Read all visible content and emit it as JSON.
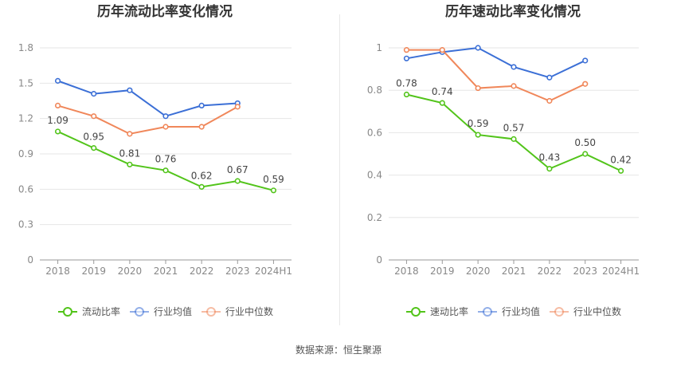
{
  "source": "数据来源：恒生聚源",
  "colors": {
    "main": "#52c41a",
    "avg": "#3b6fd6",
    "median": "#f0875a"
  },
  "chart_data": [
    {
      "type": "line",
      "title": "历年流动比率变化情况",
      "categories": [
        "2018",
        "2019",
        "2020",
        "2021",
        "2022",
        "2023",
        "2024H1"
      ],
      "ylim": [
        0,
        1.8
      ],
      "yticks": [
        "0",
        "0.3",
        "0.6",
        "0.9",
        "1.2",
        "1.5",
        "1.8"
      ],
      "grid": true,
      "legend_position": "bottom",
      "series": [
        {
          "name": "流动比率",
          "values": [
            1.09,
            0.95,
            0.81,
            0.76,
            0.62,
            0.67,
            0.59
          ],
          "labels": [
            "1.09",
            "0.95",
            "0.81",
            "0.76",
            "0.62",
            "0.67",
            "0.59"
          ]
        },
        {
          "name": "行业均值",
          "values": [
            1.52,
            1.41,
            1.44,
            1.22,
            1.31,
            1.33,
            null
          ]
        },
        {
          "name": "行业中位数",
          "values": [
            1.31,
            1.22,
            1.07,
            1.13,
            1.13,
            1.3,
            null
          ]
        }
      ]
    },
    {
      "type": "line",
      "title": "历年速动比率变化情况",
      "categories": [
        "2018",
        "2019",
        "2020",
        "2021",
        "2022",
        "2023",
        "2024H1"
      ],
      "ylim": [
        0,
        1
      ],
      "yticks": [
        "0",
        "0.2",
        "0.4",
        "0.6",
        "0.8",
        "1"
      ],
      "grid": true,
      "legend_position": "bottom",
      "series": [
        {
          "name": "速动比率",
          "values": [
            0.78,
            0.74,
            0.59,
            0.57,
            0.43,
            0.5,
            0.42
          ],
          "labels": [
            "0.78",
            "0.74",
            "0.59",
            "0.57",
            "0.43",
            "0.50",
            "0.42"
          ]
        },
        {
          "name": "行业均值",
          "values": [
            0.95,
            0.98,
            1.0,
            0.91,
            0.86,
            0.94,
            null
          ]
        },
        {
          "name": "行业中位数",
          "values": [
            0.99,
            0.99,
            0.81,
            0.82,
            0.75,
            0.83,
            null
          ]
        }
      ]
    }
  ]
}
